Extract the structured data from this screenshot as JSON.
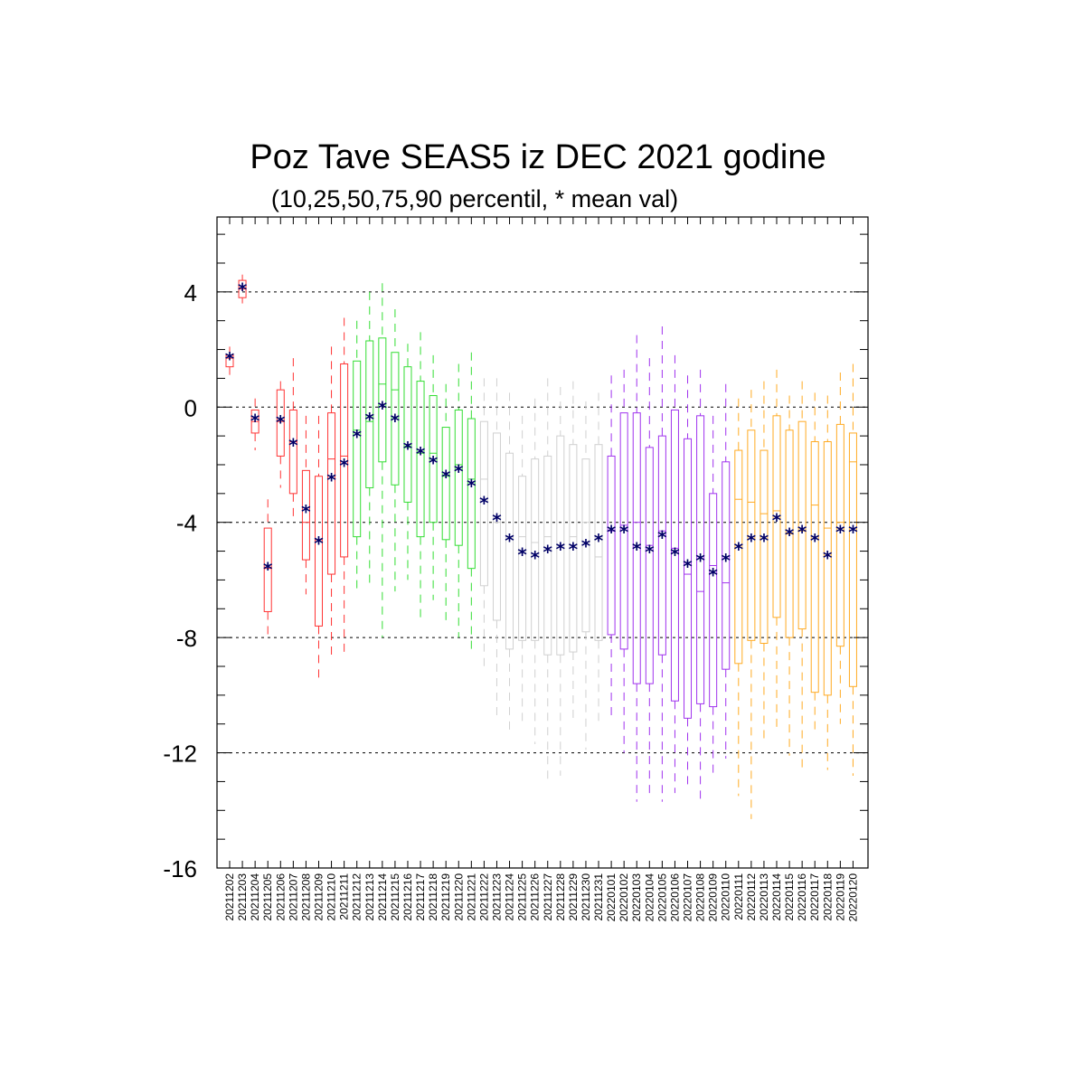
{
  "chart_data": {
    "type": "boxplot",
    "title": "Poz Tave SEAS5 iz DEC 2021 godine",
    "subtitle": "(10,25,50,75,90 percentil, * mean val)",
    "ylim": [
      -16,
      6.6
    ],
    "yticks": [
      4,
      0,
      -4,
      -8,
      -12,
      -16
    ],
    "ytick_labels": [
      "4",
      "0",
      "-4",
      "-8",
      "-12",
      "-16"
    ],
    "grid": "horizontal dashed at major y ticks",
    "mean_marker": "*",
    "mean_color": "#000066",
    "colors": {
      "red": "#ff3333",
      "green": "#33dd33",
      "grey": "#d0d0d0",
      "purple": "#a033ee",
      "orange": "#ffaa22"
    },
    "categories": [
      "20211202",
      "20211203",
      "20211204",
      "20211205",
      "20211206",
      "20211207",
      "20211208",
      "20211209",
      "20211210",
      "20211211",
      "20211212",
      "20211213",
      "20211214",
      "20211215",
      "20211216",
      "20211217",
      "20211218",
      "20211219",
      "20211220",
      "20211221",
      "20211222",
      "20211223",
      "20211224",
      "20211225",
      "20211226",
      "20211227",
      "20211228",
      "20211229",
      "20211230",
      "20211231",
      "20220101",
      "20220102",
      "20220103",
      "20220104",
      "20220105",
      "20220106",
      "20220107",
      "20220108",
      "20220109",
      "20220110",
      "20220111",
      "20220112",
      "20220113",
      "20220114",
      "20220115",
      "20220116",
      "20220117",
      "20220118",
      "20220119",
      "20220120"
    ],
    "boxes": [
      {
        "color": "red",
        "p10": 1.1,
        "p25": 1.4,
        "p50": 1.7,
        "p75": 1.8,
        "p90": 2.1,
        "mean": 1.7
      },
      {
        "color": "red",
        "p10": 3.6,
        "p25": 3.8,
        "p50": 4.1,
        "p75": 4.4,
        "p90": 4.6,
        "mean": 4.1
      },
      {
        "color": "red",
        "p10": -1.5,
        "p25": -0.9,
        "p50": -0.5,
        "p75": -0.1,
        "p90": 0.3,
        "mean": -0.45
      },
      {
        "color": "red",
        "p10": -8.1,
        "p25": -7.1,
        "p50": -5.6,
        "p75": -4.2,
        "p90": -3.2,
        "mean": -5.6
      },
      {
        "color": "red",
        "p10": -2.8,
        "p25": -1.7,
        "p50": -0.5,
        "p75": 0.6,
        "p90": 0.9,
        "mean": -0.5
      },
      {
        "color": "red",
        "p10": -3.9,
        "p25": -3.0,
        "p50": -1.2,
        "p75": -0.1,
        "p90": 1.7,
        "mean": -1.3
      },
      {
        "color": "red",
        "p10": -6.5,
        "p25": -5.3,
        "p50": -4.0,
        "p75": -2.2,
        "p90": -0.3,
        "mean": -3.6
      },
      {
        "color": "red",
        "p10": -9.4,
        "p25": -7.6,
        "p50": -4.6,
        "p75": -2.4,
        "p90": -0.3,
        "mean": -4.7
      },
      {
        "color": "red",
        "p10": -8.6,
        "p25": -5.8,
        "p50": -1.8,
        "p75": -0.2,
        "p90": 2.1,
        "mean": -2.5
      },
      {
        "color": "red",
        "p10": -8.5,
        "p25": -5.2,
        "p50": -1.7,
        "p75": 1.5,
        "p90": 3.1,
        "mean": -2.0
      },
      {
        "color": "green",
        "p10": -6.4,
        "p25": -4.5,
        "p50": -0.8,
        "p75": 1.6,
        "p90": 3.0,
        "mean": -1.0
      },
      {
        "color": "green",
        "p10": -6.3,
        "p25": -2.8,
        "p50": -0.5,
        "p75": 2.3,
        "p90": 4.0,
        "mean": -0.4
      },
      {
        "color": "green",
        "p10": -8.0,
        "p25": -1.9,
        "p50": 0.8,
        "p75": 2.4,
        "p90": 4.3,
        "mean": 0.0
      },
      {
        "color": "green",
        "p10": -6.4,
        "p25": -2.7,
        "p50": 0.6,
        "p75": 1.9,
        "p90": 3.4,
        "mean": -0.45
      },
      {
        "color": "green",
        "p10": -6.0,
        "p25": -3.3,
        "p50": -1.4,
        "p75": 1.4,
        "p90": 2.2,
        "mean": -1.4
      },
      {
        "color": "green",
        "p10": -7.4,
        "p25": -4.5,
        "p50": -1.6,
        "p75": 0.9,
        "p90": 2.6,
        "mean": -1.6
      },
      {
        "color": "green",
        "p10": -6.7,
        "p25": -4.0,
        "p50": -1.6,
        "p75": 0.4,
        "p90": 1.8,
        "mean": -1.9
      },
      {
        "color": "green",
        "p10": -7.4,
        "p25": -4.6,
        "p50": -2.4,
        "p75": -0.7,
        "p90": 0.8,
        "mean": -2.4
      },
      {
        "color": "green",
        "p10": -8.0,
        "p25": -4.8,
        "p50": -2.0,
        "p75": -0.1,
        "p90": 1.5,
        "mean": -2.2
      },
      {
        "color": "green",
        "p10": -8.5,
        "p25": -5.6,
        "p50": -2.5,
        "p75": -0.4,
        "p90": 1.9,
        "mean": -2.7
      },
      {
        "color": "grey",
        "p10": -9.1,
        "p25": -6.2,
        "p50": -2.5,
        "p75": -0.5,
        "p90": 1.0,
        "mean": -3.3
      },
      {
        "color": "grey",
        "p10": -10.7,
        "p25": -7.4,
        "p50": -4.0,
        "p75": -0.9,
        "p90": 1.0,
        "mean": -3.9
      },
      {
        "color": "grey",
        "p10": -11.3,
        "p25": -8.4,
        "p50": -4.5,
        "p75": -1.6,
        "p90": 0.5,
        "mean": -4.6
      },
      {
        "color": "grey",
        "p10": -11.0,
        "p25": -8.1,
        "p50": -4.5,
        "p75": -2.4,
        "p90": -0.3,
        "mean": -5.1
      },
      {
        "color": "grey",
        "p10": -11.7,
        "p25": -8.1,
        "p50": -4.7,
        "p75": -1.8,
        "p90": 0.3,
        "mean": -5.2
      },
      {
        "color": "grey",
        "p10": -13.0,
        "p25": -8.6,
        "p50": -4.5,
        "p75": -1.7,
        "p90": 1.0,
        "mean": -5.0
      },
      {
        "color": "grey",
        "p10": -12.8,
        "p25": -8.6,
        "p50": -4.8,
        "p75": -1.0,
        "p90": 0.7,
        "mean": -4.9
      },
      {
        "color": "grey",
        "p10": -10.9,
        "p25": -8.5,
        "p50": -4.5,
        "p75": -1.3,
        "p90": 0.9,
        "mean": -4.9
      },
      {
        "color": "grey",
        "p10": -11.9,
        "p25": -7.8,
        "p50": -4.0,
        "p75": -1.8,
        "p90": 0.2,
        "mean": -4.8
      },
      {
        "color": "grey",
        "p10": -10.9,
        "p25": -8.1,
        "p50": -5.2,
        "p75": -1.3,
        "p90": 0.5,
        "mean": -4.6
      },
      {
        "color": "purple",
        "p10": -10.9,
        "p25": -7.9,
        "p50": -4.3,
        "p75": -1.7,
        "p90": 1.1,
        "mean": -4.3
      },
      {
        "color": "purple",
        "p10": -12.0,
        "p25": -8.4,
        "p50": -4.1,
        "p75": -0.2,
        "p90": 1.3,
        "mean": -4.3
      },
      {
        "color": "purple",
        "p10": -13.7,
        "p25": -9.6,
        "p50": -4.0,
        "p75": -0.2,
        "p90": 2.5,
        "mean": -4.9
      },
      {
        "color": "purple",
        "p10": -13.5,
        "p25": -9.6,
        "p50": -4.8,
        "p75": -1.4,
        "p90": 1.7,
        "mean": -5.0
      },
      {
        "color": "purple",
        "p10": -13.7,
        "p25": -8.6,
        "p50": -4.3,
        "p75": -1.0,
        "p90": 2.8,
        "mean": -4.5
      },
      {
        "color": "purple",
        "p10": -13.4,
        "p25": -10.2,
        "p50": -4.9,
        "p75": -0.1,
        "p90": 1.8,
        "mean": -5.1
      },
      {
        "color": "purple",
        "p10": -13.2,
        "p25": -10.8,
        "p50": -5.8,
        "p75": -1.1,
        "p90": 1.1,
        "mean": -5.5
      },
      {
        "color": "purple",
        "p10": -13.6,
        "p25": -10.3,
        "p50": -6.4,
        "p75": -0.3,
        "p90": 1.3,
        "mean": -5.3
      },
      {
        "color": "purple",
        "p10": -12.8,
        "p25": -10.4,
        "p50": -5.5,
        "p75": -3.0,
        "p90": -0.3,
        "mean": -5.8
      },
      {
        "color": "purple",
        "p10": -12.2,
        "p25": -9.1,
        "p50": -6.1,
        "p75": -1.9,
        "p90": 0.8,
        "mean": -5.3
      },
      {
        "color": "orange",
        "p10": -13.5,
        "p25": -8.9,
        "p50": -3.2,
        "p75": -1.5,
        "p90": 0.3,
        "mean": -4.9
      },
      {
        "color": "orange",
        "p10": -14.3,
        "p25": -8.1,
        "p50": -3.3,
        "p75": -0.8,
        "p90": 0.6,
        "mean": -4.6
      },
      {
        "color": "orange",
        "p10": -11.6,
        "p25": -8.2,
        "p50": -3.7,
        "p75": -1.5,
        "p90": 0.9,
        "mean": -4.6
      },
      {
        "color": "orange",
        "p10": -11.1,
        "p25": -7.3,
        "p50": -3.6,
        "p75": -0.3,
        "p90": 1.3,
        "mean": -3.9
      },
      {
        "color": "orange",
        "p10": -12.1,
        "p25": -8.0,
        "p50": -4.4,
        "p75": -0.8,
        "p90": 0.4,
        "mean": -4.4
      },
      {
        "color": "orange",
        "p10": -12.7,
        "p25": -7.7,
        "p50": -4.3,
        "p75": -0.5,
        "p90": 0.9,
        "mean": -4.3
      },
      {
        "color": "orange",
        "p10": -11.4,
        "p25": -9.9,
        "p50": -3.4,
        "p75": -1.2,
        "p90": 0.5,
        "mean": -4.6
      },
      {
        "color": "orange",
        "p10": -12.6,
        "p25": -10.0,
        "p50": -4.2,
        "p75": -1.2,
        "p90": 0.4,
        "mean": -5.2
      },
      {
        "color": "orange",
        "p10": -11.0,
        "p25": -8.3,
        "p50": -4.0,
        "p75": -0.6,
        "p90": 1.2,
        "mean": -4.3
      },
      {
        "color": "orange",
        "p10": -12.8,
        "p25": -9.7,
        "p50": -1.9,
        "p75": -0.9,
        "p90": 1.5,
        "mean": -4.3
      }
    ]
  }
}
